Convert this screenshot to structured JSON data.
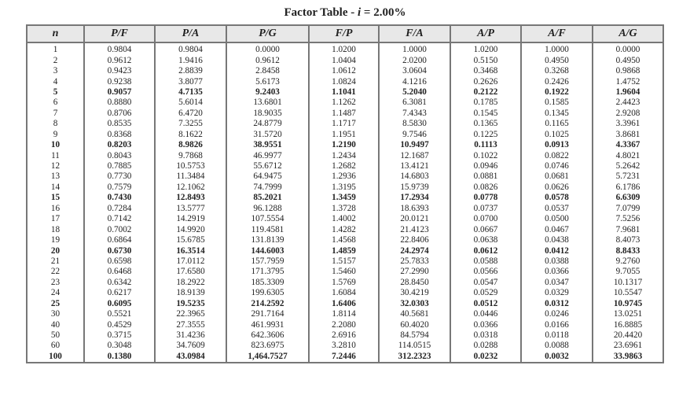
{
  "title": {
    "prefix": "Factor Table - ",
    "var": "i",
    "suffix": " = 2.00%"
  },
  "columns": [
    "n",
    "P/F",
    "P/A",
    "P/G",
    "F/P",
    "F/A",
    "A/P",
    "A/F",
    "A/G"
  ],
  "rows": [
    {
      "bold": false,
      "cells": [
        "1",
        "0.9804",
        "0.9804",
        "0.0000",
        "1.0200",
        "1.0000",
        "1.0200",
        "1.0000",
        "0.0000"
      ]
    },
    {
      "bold": false,
      "cells": [
        "2",
        "0.9612",
        "1.9416",
        "0.9612",
        "1.0404",
        "2.0200",
        "0.5150",
        "0.4950",
        "0.4950"
      ]
    },
    {
      "bold": false,
      "cells": [
        "3",
        "0.9423",
        "2.8839",
        "2.8458",
        "1.0612",
        "3.0604",
        "0.3468",
        "0.3268",
        "0.9868"
      ]
    },
    {
      "bold": false,
      "cells": [
        "4",
        "0.9238",
        "3.8077",
        "5.6173",
        "1.0824",
        "4.1216",
        "0.2626",
        "0.2426",
        "1.4752"
      ]
    },
    {
      "bold": true,
      "cells": [
        "5",
        "0.9057",
        "4.7135",
        "9.2403",
        "1.1041",
        "5.2040",
        "0.2122",
        "0.1922",
        "1.9604"
      ]
    },
    {
      "bold": false,
      "cells": [
        "6",
        "0.8880",
        "5.6014",
        "13.6801",
        "1.1262",
        "6.3081",
        "0.1785",
        "0.1585",
        "2.4423"
      ]
    },
    {
      "bold": false,
      "cells": [
        "7",
        "0.8706",
        "6.4720",
        "18.9035",
        "1.1487",
        "7.4343",
        "0.1545",
        "0.1345",
        "2.9208"
      ]
    },
    {
      "bold": false,
      "cells": [
        "8",
        "0.8535",
        "7.3255",
        "24.8779",
        "1.1717",
        "8.5830",
        "0.1365",
        "0.1165",
        "3.3961"
      ]
    },
    {
      "bold": false,
      "cells": [
        "9",
        "0.8368",
        "8.1622",
        "31.5720",
        "1.1951",
        "9.7546",
        "0.1225",
        "0.1025",
        "3.8681"
      ]
    },
    {
      "bold": true,
      "cells": [
        "10",
        "0.8203",
        "8.9826",
        "38.9551",
        "1.2190",
        "10.9497",
        "0.1113",
        "0.0913",
        "4.3367"
      ]
    },
    {
      "bold": false,
      "cells": [
        "11",
        "0.8043",
        "9.7868",
        "46.9977",
        "1.2434",
        "12.1687",
        "0.1022",
        "0.0822",
        "4.8021"
      ]
    },
    {
      "bold": false,
      "cells": [
        "12",
        "0.7885",
        "10.5753",
        "55.6712",
        "1.2682",
        "13.4121",
        "0.0946",
        "0.0746",
        "5.2642"
      ]
    },
    {
      "bold": false,
      "cells": [
        "13",
        "0.7730",
        "11.3484",
        "64.9475",
        "1.2936",
        "14.6803",
        "0.0881",
        "0.0681",
        "5.7231"
      ]
    },
    {
      "bold": false,
      "cells": [
        "14",
        "0.7579",
        "12.1062",
        "74.7999",
        "1.3195",
        "15.9739",
        "0.0826",
        "0.0626",
        "6.1786"
      ]
    },
    {
      "bold": true,
      "cells": [
        "15",
        "0.7430",
        "12.8493",
        "85.2021",
        "1.3459",
        "17.2934",
        "0.0778",
        "0.0578",
        "6.6309"
      ]
    },
    {
      "bold": false,
      "cells": [
        "16",
        "0.7284",
        "13.5777",
        "96.1288",
        "1.3728",
        "18.6393",
        "0.0737",
        "0.0537",
        "7.0799"
      ]
    },
    {
      "bold": false,
      "cells": [
        "17",
        "0.7142",
        "14.2919",
        "107.5554",
        "1.4002",
        "20.0121",
        "0.0700",
        "0.0500",
        "7.5256"
      ]
    },
    {
      "bold": false,
      "cells": [
        "18",
        "0.7002",
        "14.9920",
        "119.4581",
        "1.4282",
        "21.4123",
        "0.0667",
        "0.0467",
        "7.9681"
      ]
    },
    {
      "bold": false,
      "cells": [
        "19",
        "0.6864",
        "15.6785",
        "131.8139",
        "1.4568",
        "22.8406",
        "0.0638",
        "0.0438",
        "8.4073"
      ]
    },
    {
      "bold": true,
      "cells": [
        "20",
        "0.6730",
        "16.3514",
        "144.6003",
        "1.4859",
        "24.2974",
        "0.0612",
        "0.0412",
        "8.8433"
      ]
    },
    {
      "bold": false,
      "cells": [
        "21",
        "0.6598",
        "17.0112",
        "157.7959",
        "1.5157",
        "25.7833",
        "0.0588",
        "0.0388",
        "9.2760"
      ]
    },
    {
      "bold": false,
      "cells": [
        "22",
        "0.6468",
        "17.6580",
        "171.3795",
        "1.5460",
        "27.2990",
        "0.0566",
        "0.0366",
        "9.7055"
      ]
    },
    {
      "bold": false,
      "cells": [
        "23",
        "0.6342",
        "18.2922",
        "185.3309",
        "1.5769",
        "28.8450",
        "0.0547",
        "0.0347",
        "10.1317"
      ]
    },
    {
      "bold": false,
      "cells": [
        "24",
        "0.6217",
        "18.9139",
        "199.6305",
        "1.6084",
        "30.4219",
        "0.0529",
        "0.0329",
        "10.5547"
      ]
    },
    {
      "bold": true,
      "cells": [
        "25",
        "0.6095",
        "19.5235",
        "214.2592",
        "1.6406",
        "32.0303",
        "0.0512",
        "0.0312",
        "10.9745"
      ]
    },
    {
      "bold": false,
      "cells": [
        "30",
        "0.5521",
        "22.3965",
        "291.7164",
        "1.8114",
        "40.5681",
        "0.0446",
        "0.0246",
        "13.0251"
      ]
    },
    {
      "bold": false,
      "cells": [
        "40",
        "0.4529",
        "27.3555",
        "461.9931",
        "2.2080",
        "60.4020",
        "0.0366",
        "0.0166",
        "16.8885"
      ]
    },
    {
      "bold": false,
      "cells": [
        "50",
        "0.3715",
        "31.4236",
        "642.3606",
        "2.6916",
        "84.5794",
        "0.0318",
        "0.0118",
        "20.4420"
      ]
    },
    {
      "bold": false,
      "cells": [
        "60",
        "0.3048",
        "34.7609",
        "823.6975",
        "3.2810",
        "114.0515",
        "0.0288",
        "0.0088",
        "23.6961"
      ]
    },
    {
      "bold": true,
      "cells": [
        "100",
        "0.1380",
        "43.0984",
        "1,464.7527",
        "7.2446",
        "312.2323",
        "0.0232",
        "0.0032",
        "33.9863"
      ]
    }
  ]
}
